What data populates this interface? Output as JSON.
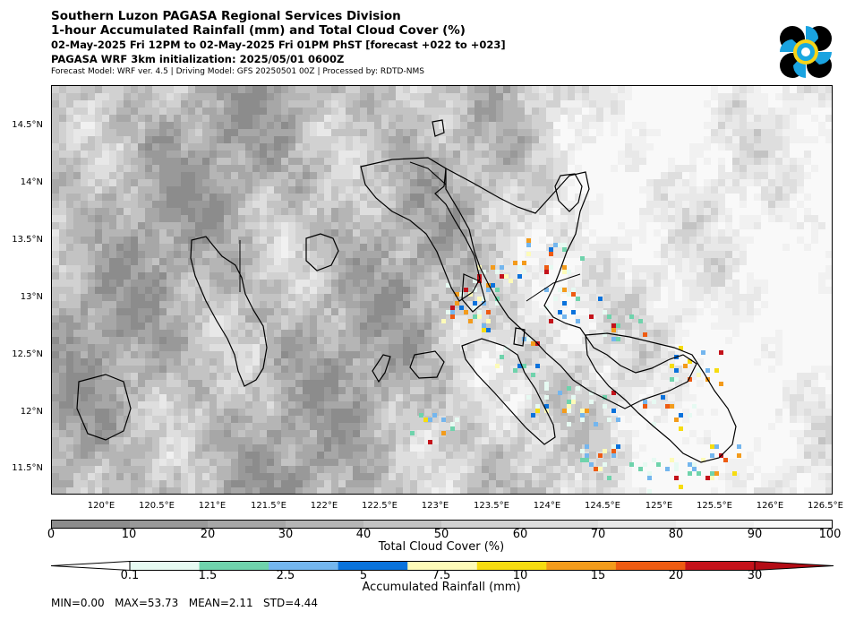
{
  "header": {
    "line1": "Southern Luzon PAGASA Regional Services Division",
    "line2": "1-hour Accumulated Rainfall (mm) and Total Cloud Cover (%)",
    "line3": "02-May-2025 Fri 12PM to 02-May-2025 Fri 01PM PhST [forecast +022 to +023]",
    "line4": "PAGASA WRF 3km initialization: 2025/05/01 0600Z",
    "line5": "Forecast Model: WRF ver. 4.5 | Driving Model: GFS 20250501 00Z | Processed by: RDTD-NMS"
  },
  "map": {
    "lat_labels": [
      "14.5°N",
      "14°N",
      "13.5°N",
      "13°N",
      "12.5°N",
      "12°N",
      "11.5°N"
    ],
    "lat_values": [
      14.5,
      14.0,
      13.5,
      13.0,
      12.5,
      12.0,
      11.5
    ],
    "lon_labels": [
      "120°E",
      "120.5°E",
      "121°E",
      "121.5°E",
      "122°E",
      "122.5°E",
      "123°E",
      "123.5°E",
      "124°E",
      "124.5°E",
      "125°E",
      "125.5°E",
      "126°E",
      "126.5°E"
    ],
    "lon_values": [
      120.0,
      120.5,
      121.0,
      121.5,
      122.0,
      122.5,
      123.0,
      123.5,
      124.0,
      124.5,
      125.0,
      125.5,
      126.0,
      126.5
    ],
    "extent": {
      "lon": [
        119.55,
        126.6
      ],
      "lat": [
        11.3,
        14.87
      ]
    }
  },
  "cloud_colorbar": {
    "title": "Total Cloud Cover (%)",
    "ticks": [
      "0",
      "10",
      "20",
      "30",
      "40",
      "50",
      "60",
      "70",
      "80",
      "90",
      "100"
    ],
    "colors": [
      "#8c8c8c",
      "#999999",
      "#a7a7a7",
      "#b5b5b5",
      "#c3c3c3",
      "#d1d1d1",
      "#dedede",
      "#e8e8e8",
      "#f1f1f1",
      "#f9f9f9"
    ]
  },
  "rain_colorbar": {
    "title": "Accumulated Rainfall (mm)",
    "ticks": [
      "0.1",
      "1.5",
      "2.5",
      "5",
      "7.5",
      "10",
      "15",
      "20",
      "30"
    ],
    "colors": [
      "#e6faf2",
      "#6fd3ac",
      "#74b6ee",
      "#0a72dc",
      "#fdfbb8",
      "#f6dc10",
      "#f39b1b",
      "#ee5b12",
      "#c4121a"
    ],
    "under_color": "#ffffff",
    "over_color": "#b40c15"
  },
  "stats": {
    "text": "MIN=0.00   MAX=53.73   MEAN=2.11   STD=4.44"
  }
}
